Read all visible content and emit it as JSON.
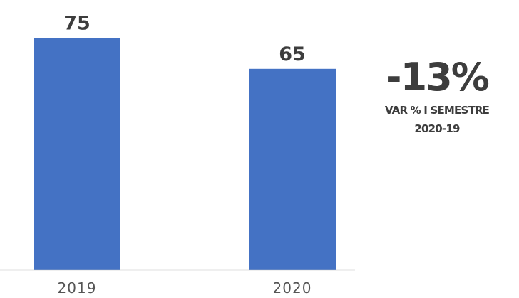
{
  "chart_data": {
    "type": "bar",
    "categories": [
      "2019",
      "2020"
    ],
    "values": [
      75,
      65
    ],
    "ylim": [
      0,
      82
    ],
    "bar_color": "#4472c4",
    "axis_color": "#bfbfbf",
    "grid": false,
    "legend": "none"
  },
  "kpi": {
    "value": "-13%",
    "label_line1": "VAR % I SEMESTRE",
    "label_line2": "2020-19"
  }
}
